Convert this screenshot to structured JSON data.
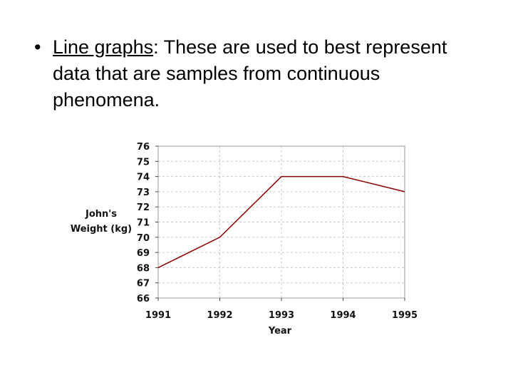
{
  "slide": {
    "bullet": "•",
    "term": "Line graphs",
    "text": ": These are used to best represent data that are samples from continuous phenomena."
  },
  "chart_data": {
    "type": "line",
    "x": [
      1991,
      1992,
      1993,
      1994,
      1995
    ],
    "x_tick_labels": [
      "1991",
      "1992",
      "1993",
      "1994",
      "1995"
    ],
    "series": [
      {
        "values": [
          68,
          70,
          74,
          74,
          73
        ],
        "color": "#8b0000"
      }
    ],
    "xlabel": "Year",
    "ylabel_lines": [
      "John's",
      "Weight (kg)"
    ],
    "ylim": [
      66,
      76
    ],
    "yticks": [
      66,
      67,
      68,
      69,
      70,
      71,
      72,
      73,
      74,
      75,
      76
    ],
    "grid": true,
    "grid_style": "dashed",
    "colors": {
      "grid": "#c8c8c8",
      "axis": "#444444",
      "line": "#8b0000"
    }
  }
}
